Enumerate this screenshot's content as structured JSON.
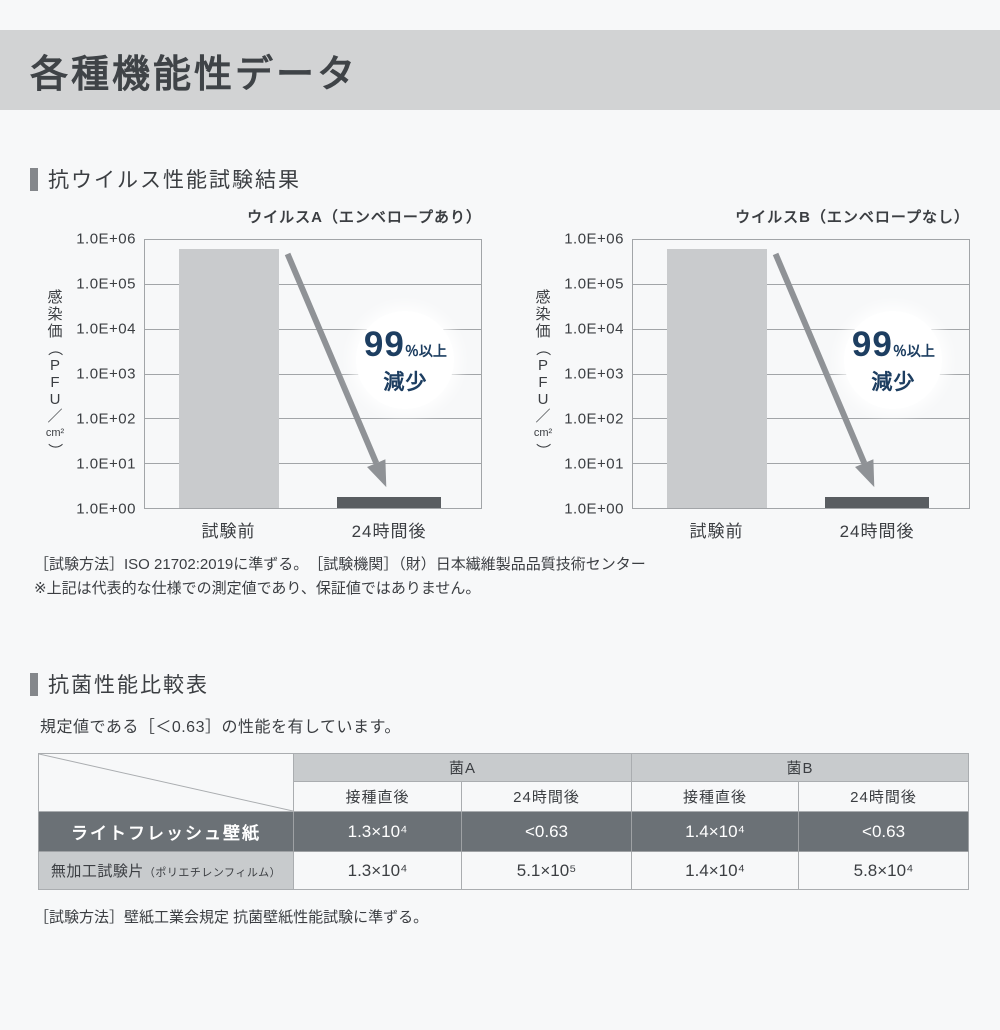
{
  "header": {
    "title": "各種機能性データ"
  },
  "badge": {
    "big": "99",
    "suffix": "％以上",
    "line2": "減少"
  },
  "colors": {
    "page_bg": "#f7f8f9",
    "banner_bg": "#d2d3d4",
    "bar_light": "#c9cbcd",
    "bar_dark": "#595d61",
    "arrow_gray": "#8f9296",
    "accent_navy": "#1d3e61",
    "table_header_gray": "#c8cbcd",
    "table_row_dark": "#6b7176",
    "grid_gray": "#a2a5a8"
  },
  "sections": {
    "antivirus": {
      "title": "抗ウイルス性能試験結果",
      "note1": "［試験方法］ISO 21702:2019に準ずる。　［試験機関］（財）日本繊維製品品質技術センター",
      "note2": "※上記は代表的な仕様での測定値であり、保証値ではありません。"
    },
    "antibacterial": {
      "title": "抗菌性能比較表",
      "intro": "規定値である［＜0.63］の性能を有しています。",
      "note": "［試験方法］壁紙工業会規定 抗菌壁紙性能試験に準ずる。"
    }
  },
  "chart_data": [
    {
      "type": "bar",
      "title": "ウイルスA（エンベロープあり）",
      "ylabel": "感染価（PFU／㎠）",
      "categories": [
        "試験前",
        "24時間後"
      ],
      "values": [
        600000,
        1.8
      ],
      "bar_colors": [
        "#c9cbcd",
        "#595d61"
      ],
      "yticks": [
        "1.0E+06",
        "1.0E+05",
        "1.0E+04",
        "1.0E+03",
        "1.0E+02",
        "1.0E+01",
        "1.0E+00"
      ],
      "yscale": "log",
      "ylim": [
        1,
        1000000
      ],
      "grid": true,
      "annotation": "99％以上減少"
    },
    {
      "type": "bar",
      "title": "ウイルスB（エンベロープなし）",
      "ylabel": "感染価（PFU／㎠）",
      "categories": [
        "試験前",
        "24時間後"
      ],
      "values": [
        600000,
        1.8
      ],
      "bar_colors": [
        "#c9cbcd",
        "#595d61"
      ],
      "yticks": [
        "1.0E+06",
        "1.0E+05",
        "1.0E+04",
        "1.0E+03",
        "1.0E+02",
        "1.0E+01",
        "1.0E+00"
      ],
      "yscale": "log",
      "ylim": [
        1,
        1000000
      ],
      "grid": true,
      "annotation": "99％以上減少"
    },
    {
      "type": "table",
      "col_groups": [
        "菌A",
        "菌B"
      ],
      "sub_headers": [
        "接種直後",
        "24時間後",
        "接種直後",
        "24時間後"
      ],
      "rows": [
        {
          "label": "ライトフレッシュ壁紙",
          "label_note": "",
          "values": [
            "1.3×10⁴",
            "<0.63",
            "1.4×10⁴",
            "<0.63"
          ],
          "highlight": true
        },
        {
          "label": "無加工試験片",
          "label_note": "（ポリエチレンフィルム）",
          "values": [
            "1.3×10⁴",
            "5.1×10⁵",
            "1.4×10⁴",
            "5.8×10⁴"
          ],
          "highlight": false
        }
      ]
    }
  ]
}
